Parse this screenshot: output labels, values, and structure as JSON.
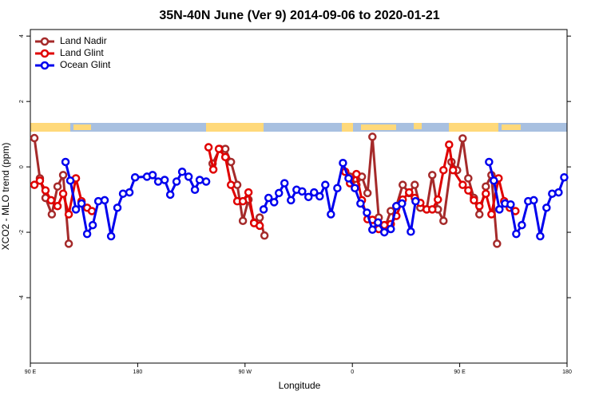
{
  "chart_data": {
    "type": "line",
    "title": "35N-40N June (Ver 9)   2014-09-06 to 2020-01-21",
    "xlabel": "Longitude",
    "ylabel": "XCO2 - MLO trend (ppm)",
    "xlim": [
      90,
      540
    ],
    "xticks": [
      {
        "value": 90,
        "label": "90 E"
      },
      {
        "value": 180,
        "label": "180"
      },
      {
        "value": 270,
        "label": "90 W"
      },
      {
        "value": 360,
        "label": "0"
      },
      {
        "value": 450,
        "label": "90 E"
      },
      {
        "value": 540,
        "label": "180"
      }
    ],
    "ylim": [
      -6,
      4.2
    ],
    "yticks": [
      4,
      2,
      0,
      -2,
      -4
    ],
    "legend": "top-left",
    "series": [
      {
        "name": "Land Nadir",
        "color": "#a52a2a",
        "x": [
          93.4,
          98,
          102.7,
          108,
          112.8,
          117.5,
          122.2,
          null,
          242.8,
          248.8,
          253.5,
          258.2,
          263.5,
          268.2,
          272.9,
          277.6,
          282.3,
          286.3,
          null,
          354,
          358,
          363.4,
          368,
          372.7,
          376.8,
          382.1,
          386.8,
          392.2,
          396.9,
          402.2,
          407.6,
          412.3,
          417,
          422.3,
          427,
          431.7,
          436.4,
          443.1,
          447.8,
          452.5,
          457.2,
          461.9,
          466.5,
          471.9,
          476.6,
          481.3
        ],
        "values": [
          0.88,
          -0.35,
          -0.95,
          -1.45,
          -0.6,
          -0.25,
          -2.35,
          null,
          0.1,
          0.55,
          0.55,
          0.15,
          -0.55,
          -1.65,
          -1,
          -1.7,
          -1.55,
          -2.1,
          null,
          -0.15,
          -0.3,
          -0.55,
          -0.3,
          -0.8,
          0.92,
          -1.55,
          -1.9,
          -1.35,
          -1.2,
          -0.55,
          -0.8,
          -0.55,
          -1.25,
          -1.3,
          -0.25,
          -1.3,
          -1.65,
          0.15,
          -0.1,
          0.87,
          -0.35,
          -0.95,
          -1.45,
          -0.6,
          -0.25,
          -2.35
        ]
      },
      {
        "name": "Land Glint",
        "color": "#e00000",
        "x": [
          93.4,
          98,
          102.7,
          107.4,
          112.8,
          117.5,
          122.2,
          128.2,
          132.9,
          137.6,
          141.6,
          null,
          239.4,
          243.4,
          248.1,
          253.5,
          258.2,
          263.5,
          268.2,
          272.9,
          277.6,
          282.3,
          null,
          354,
          358,
          363.4,
          368,
          372.7,
          376.8,
          382.1,
          386.8,
          392.2,
          396.9,
          402.2,
          407.6,
          412.3,
          417,
          422.3,
          427,
          431.7,
          436.4,
          441.1,
          444.4,
          452.5,
          457.2,
          461.9,
          466.5,
          471.9,
          476.6,
          482.6,
          487.3,
          492,
          496.7
        ],
        "values": [
          -0.55,
          -0.42,
          -0.72,
          -1.02,
          -1.2,
          -0.82,
          -1.45,
          -0.35,
          -1.05,
          -1.25,
          -1.35,
          null,
          0.6,
          -0.08,
          0.55,
          0.3,
          -0.55,
          -1.05,
          -1.05,
          -0.78,
          -1.72,
          -1.8,
          null,
          -0.15,
          -0.5,
          -0.22,
          -1.02,
          -1.6,
          -1.62,
          -1.9,
          -1.78,
          -1.75,
          -1.5,
          -1.0,
          -0.78,
          -0.95,
          -1.1,
          -1.3,
          -1.3,
          -1.0,
          -0.1,
          0.68,
          -0.1,
          -0.55,
          -0.72,
          -1.02,
          -1.2,
          -0.82,
          -1.45,
          -0.35,
          -1.05,
          -1.25,
          -1.35
        ]
      },
      {
        "name": "Ocean Glint",
        "color": "#0000ee",
        "x": [
          119.5,
          123.5,
          128.2,
          132.9,
          137.6,
          142.3,
          147,
          152.3,
          157.7,
          163,
          167.7,
          173.1,
          177.8,
          187.8,
          192.5,
          197.2,
          202.6,
          207.3,
          212.6,
          217.3,
          222.7,
          228,
          232,
          237.4,
          null,
          285.6,
          289.7,
          294.4,
          298.4,
          303.1,
          308.5,
          313.2,
          317.9,
          323.2,
          327.9,
          332.6,
          337.3,
          342,
          347.4,
          352.1,
          356.8,
          362.1,
          366.8,
          372.2,
          376.8,
          381.5,
          386.8,
          392.2,
          396.9,
          401.6,
          409,
          413,
          null,
          474.6,
          478.6,
          483.3,
          488,
          492.7,
          497.4,
          502.1,
          507.4,
          512.1,
          517.5,
          522.8,
          527.5,
          532.9,
          537.6
        ],
        "values": [
          0.15,
          -0.42,
          -1.3,
          -1.12,
          -2.05,
          -1.78,
          -1.05,
          -1.02,
          -2.12,
          -1.25,
          -0.82,
          -0.78,
          -0.32,
          -0.3,
          -0.25,
          -0.45,
          -0.4,
          -0.85,
          -0.45,
          -0.15,
          -0.3,
          -0.7,
          -0.4,
          -0.45,
          null,
          -1.3,
          -0.95,
          -1.08,
          -0.8,
          -0.5,
          -1.02,
          -0.7,
          -0.75,
          -0.92,
          -0.78,
          -0.9,
          -0.55,
          -1.45,
          -0.65,
          0.12,
          -0.35,
          -0.65,
          -1.12,
          -1.4,
          -1.92,
          -1.7,
          -2.0,
          -1.9,
          -1.2,
          -1.12,
          -1.98,
          -1.05,
          null,
          0.15,
          -0.42,
          -1.3,
          -1.12,
          -1.15,
          -2.05,
          -1.78,
          -1.05,
          -1.02,
          -2.12,
          -1.25,
          -0.82,
          -0.78,
          -0.32
        ]
      }
    ]
  }
}
